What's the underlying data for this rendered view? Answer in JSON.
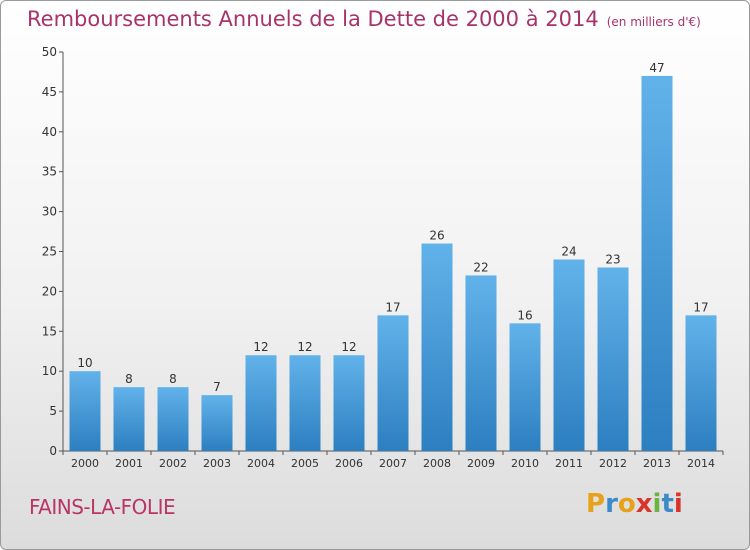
{
  "title": "Remboursements Annuels de la Dette de 2000 à 2014",
  "unit": "(en milliers d'€)",
  "place": "FAINS-LA-FOLIE",
  "logo": {
    "letters": [
      "P",
      "r",
      "o",
      "x",
      "i",
      "t",
      "i"
    ],
    "colors": [
      "#e8a21a",
      "#3d8ac9",
      "#e8a21a",
      "#d9342b",
      "#6cb33f",
      "#3d8ac9",
      "#d9342b"
    ]
  },
  "colors": {
    "title": "#a8336b",
    "bar_top": "#62b2ea",
    "bar_bottom": "#2c7fc0"
  },
  "chart_data": {
    "type": "bar",
    "categories": [
      "2000",
      "2001",
      "2002",
      "2003",
      "2004",
      "2005",
      "2006",
      "2007",
      "2008",
      "2009",
      "2010",
      "2011",
      "2012",
      "2013",
      "2014"
    ],
    "values": [
      10,
      8,
      8,
      7,
      12,
      12,
      12,
      17,
      26,
      22,
      16,
      24,
      23,
      47,
      17
    ],
    "ylim": [
      0,
      50
    ],
    "yticks": [
      0,
      5,
      10,
      15,
      20,
      25,
      30,
      35,
      40,
      45,
      50
    ],
    "grid": false
  }
}
